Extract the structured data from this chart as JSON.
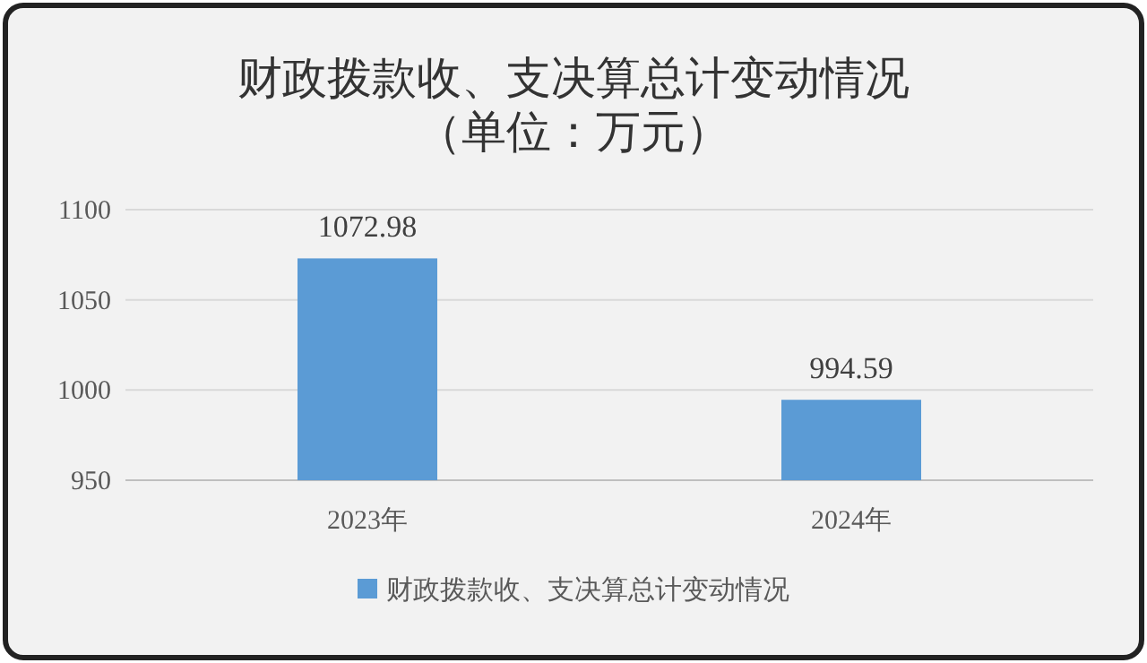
{
  "chart_data": {
    "type": "bar",
    "title": "财政拨款收、支决算总计变动情况",
    "subtitle": "（单位：万元）",
    "categories": [
      "2023年",
      "2024年"
    ],
    "series": [
      {
        "name": "财政拨款收、支决算总计变动情况",
        "color": "#5b9bd5",
        "values": [
          1072.98,
          994.59
        ]
      }
    ],
    "ylim": [
      950,
      1100
    ],
    "yticks": [
      950,
      1000,
      1050,
      1100
    ],
    "grid": "y",
    "legend": "bottom",
    "data_labels": true
  }
}
